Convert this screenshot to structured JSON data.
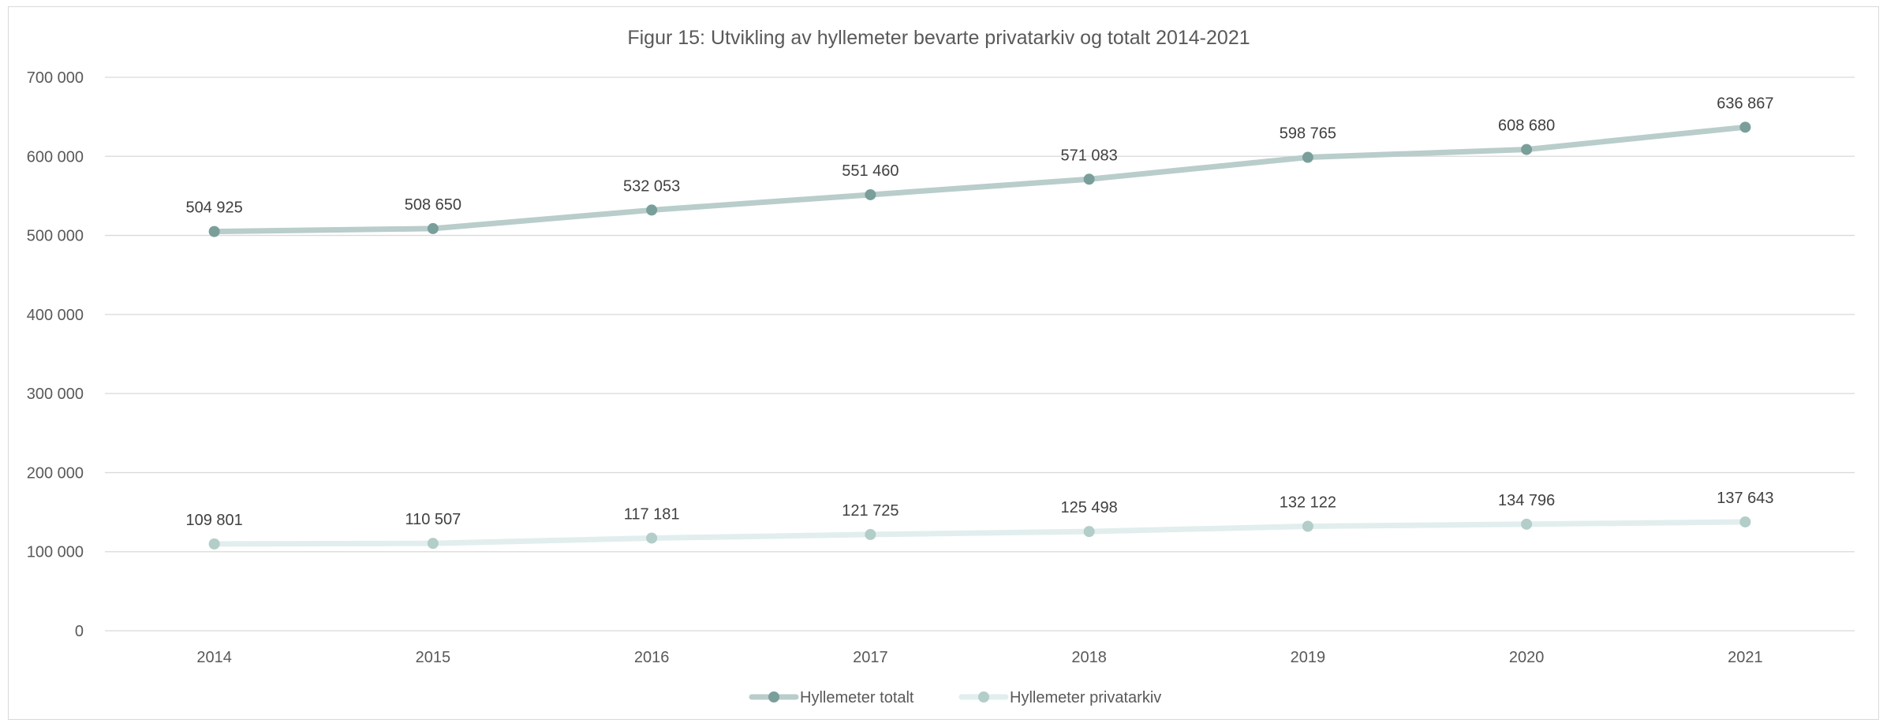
{
  "chart_data": {
    "type": "line",
    "title": "Figur 15: Utvikling av hyllemeter bevarte privatarkiv og totalt 2014-2021",
    "xlabel": "",
    "ylabel": "",
    "categories": [
      "2014",
      "2015",
      "2016",
      "2017",
      "2018",
      "2019",
      "2020",
      "2021"
    ],
    "ylim": [
      0,
      700000
    ],
    "yticks": [
      0,
      100000,
      200000,
      300000,
      400000,
      500000,
      600000,
      700000
    ],
    "ytick_labels": [
      "0",
      "100 000",
      "200 000",
      "300 000",
      "400 000",
      "500 000",
      "600 000",
      "700 000"
    ],
    "grid": true,
    "legend_position": "bottom",
    "series": [
      {
        "name": "Hyllemeter totalt",
        "values": [
          504925,
          508650,
          532053,
          551460,
          571083,
          598765,
          608680,
          636867
        ],
        "labels": [
          "504 925",
          "508 650",
          "532 053",
          "551 460",
          "571 083",
          "598 765",
          "608 680",
          "636 867"
        ],
        "line_color": "#b9cdcb",
        "marker_color": "#7a9f9b"
      },
      {
        "name": "Hyllemeter privatarkiv",
        "values": [
          109801,
          110507,
          117181,
          121725,
          125498,
          132122,
          134796,
          137643
        ],
        "labels": [
          "109 801",
          "110 507",
          "117 181",
          "121 725",
          "125 498",
          "132 122",
          "134 796",
          "137 643"
        ],
        "line_color": "#e1eeed",
        "marker_color": "#b3cdc9"
      }
    ],
    "colors": {
      "grid": "#d9d9d9",
      "text": "#595959",
      "label": "#404040"
    }
  }
}
